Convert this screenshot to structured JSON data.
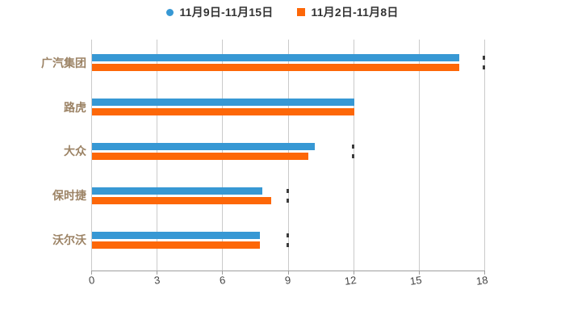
{
  "chart_data": {
    "type": "bar",
    "orientation": "horizontal",
    "title": "",
    "xlabel": "",
    "ylabel": "",
    "categories": [
      "广汽集团",
      "路虎",
      "大众",
      "保时捷",
      "沃尔沃"
    ],
    "series": [
      {
        "name": "11月9日-11月15日",
        "marker": "circle",
        "color": "#3798d4",
        "values": [
          16.8,
          12.0,
          10.2,
          7.8,
          7.7
        ]
      },
      {
        "name": "11月2日-11月8日",
        "marker": "square",
        "color": "#fd6708",
        "values": [
          16.8,
          12.0,
          9.9,
          8.2,
          7.7
        ]
      }
    ],
    "x_ticks": [
      0,
      3,
      6,
      9,
      12,
      15,
      18
    ],
    "xlim": [
      0,
      18
    ],
    "grid": true,
    "legend_position": "top-center",
    "gridline_marks": [
      {
        "category_index": 0,
        "x_value": 18
      },
      {
        "category_index": 2,
        "x_value": 12
      },
      {
        "category_index": 3,
        "x_value": 9
      },
      {
        "category_index": 4,
        "x_value": 9
      }
    ],
    "colors": {
      "background": "#ffffff",
      "gridline": "#cacaca",
      "axis_line": "#9e9e9e",
      "x_tick_label": "#454545",
      "y_tick_label": "#9c8365",
      "legend_text": "#333333",
      "mark": "#3c3c3c"
    }
  }
}
